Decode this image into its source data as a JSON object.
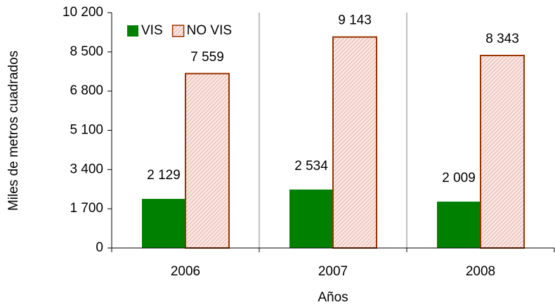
{
  "chart_data": {
    "type": "bar",
    "y_label": "Miles de metros cuadrados",
    "x_label": "Años",
    "categories": [
      "2006",
      "2007",
      "2008"
    ],
    "series": [
      {
        "name": "VIS",
        "color": "#008000",
        "values": [
          2129,
          2534,
          2009
        ],
        "value_labels": [
          "2 129",
          "2 534",
          "2 009"
        ]
      },
      {
        "name": "NO VIS",
        "color": "#f2c4bc",
        "edgecolor": "#993300",
        "values": [
          7559,
          9143,
          8343
        ],
        "value_labels": [
          "7 559",
          "9 143",
          "8 343"
        ]
      }
    ],
    "ylim": [
      0,
      10200
    ],
    "yticks": [
      0,
      {
        "value": 1700,
        "label": "1 700"
      },
      {
        "value": 3400,
        "label": "3 400"
      },
      {
        "value": 5100,
        "label": "5 100"
      },
      {
        "value": 6800,
        "label": "6 800"
      },
      {
        "value": 8500,
        "label": "8 500"
      },
      {
        "value": 10200,
        "label": "10 200"
      }
    ],
    "legend": "upper left"
  }
}
